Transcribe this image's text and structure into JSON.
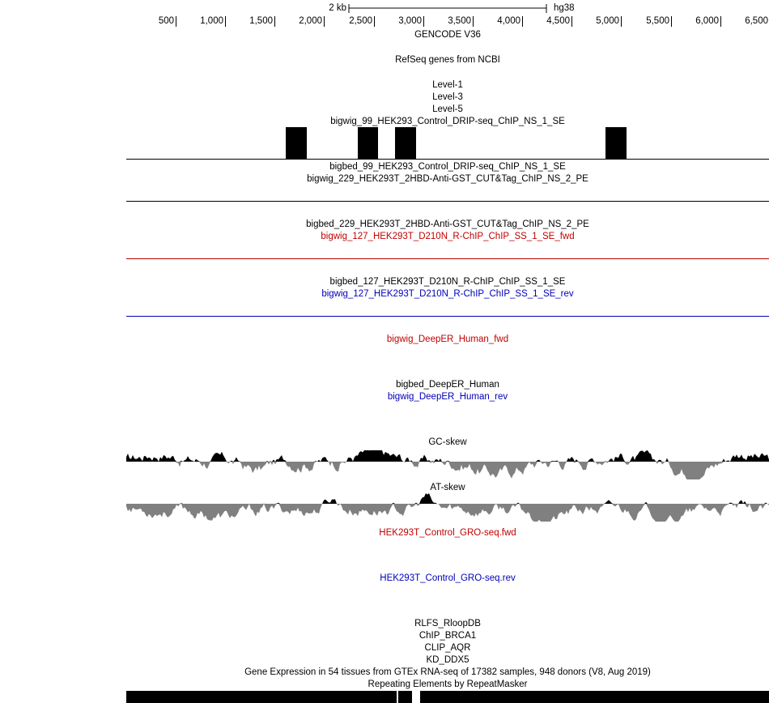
{
  "ruler": {
    "scale_label": "2 kb",
    "assembly": "hg38",
    "ticks": [
      "500",
      "1,000",
      "1,500",
      "2,000",
      "2,500",
      "3,000",
      "3,500",
      "4,000",
      "4,500",
      "5,000",
      "5,500",
      "6,000",
      "6,500"
    ]
  },
  "tracks": {
    "gencode": "GENCODE V36",
    "refseq": "RefSeq genes from NCBI",
    "level1": "Level-1",
    "level3": "Level-3",
    "level5": "Level-5",
    "bigwig_99": "bigwig_99_HEK293_Control_DRIP-seq_ChIP_NS_1_SE",
    "bigbed_99": "bigbed_99_HEK293_Control_DRIP-seq_ChIP_NS_1_SE",
    "bigwig_229": "bigwig_229_HEK293T_2HBD-Anti-GST_CUT&Tag_ChIP_NS_2_PE",
    "bigbed_229": "bigbed_229_HEK293T_2HBD-Anti-GST_CUT&Tag_ChIP_NS_2_PE",
    "bigwig_127_fwd": "bigwig_127_HEK293T_D210N_R-ChIP_ChIP_SS_1_SE_fwd",
    "bigbed_127": "bigbed_127_HEK293T_D210N_R-ChIP_ChIP_SS_1_SE",
    "bigwig_127_rev": "bigwig_127_HEK293T_D210N_R-ChIP_ChIP_SS_1_SE_rev",
    "deeper_fwd": "bigwig_DeepER_Human_fwd",
    "deeper_bed": "bigbed_DeepER_Human",
    "deeper_rev": "bigwig_DeepER_Human_rev",
    "gc_skew": "GC-skew",
    "at_skew": "AT-skew",
    "gro_fwd": "HEK293T_Control_GRO-seq.fwd",
    "gro_rev": "HEK293T_Control_GRO-seq.rev",
    "rlfs": "RLFS_RloopDB",
    "chip_brca1": "ChIP_BRCA1",
    "clip_aqr": "CLIP_AQR",
    "kd_ddx5": "KD_DDX5",
    "gtex": "Gene Expression in 54 tissues from GTEx RNA-seq of 17382 samples, 948 donors (V8, Aug 2019)",
    "repeatmasker": "Repeating Elements by RepeatMasker"
  },
  "colors": {
    "fwd": "#c00000",
    "rev": "#0000b8",
    "skew_pos": "#000000",
    "skew_neg": "#808080"
  }
}
